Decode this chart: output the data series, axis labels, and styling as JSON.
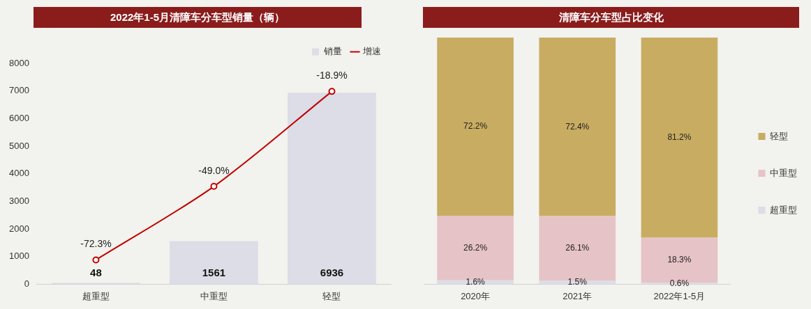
{
  "chart_data": [
    {
      "type": "bar",
      "title": "2022年1-5月清障车分车型销量（辆）",
      "categories": [
        "超重型",
        "中重型",
        "轻型"
      ],
      "series": [
        {
          "name": "销量",
          "color": "#dcdde6",
          "values": [
            48,
            1561,
            6936
          ],
          "value_labels": [
            "48",
            "1561",
            "6936"
          ]
        },
        {
          "name": "增速",
          "type": "line",
          "axis": "y2",
          "color": "#c00000",
          "values": [
            -72.3,
            -49.0,
            -18.9
          ],
          "value_labels": [
            "-72.3%",
            "-49.0%",
            "-18.9%"
          ]
        }
      ],
      "ylim": [
        0,
        8000
      ],
      "yticks": [
        0,
        1000,
        2000,
        3000,
        4000,
        5000,
        6000,
        7000,
        8000
      ],
      "tick_labels": "y",
      "grid": false,
      "legend": "top right",
      "marker": "circle"
    },
    {
      "type": "bar",
      "title": "清障车分车型占比变化",
      "categories": [
        "2020年",
        "2021年",
        "2022年1-5月"
      ],
      "stacked": true,
      "series": [
        {
          "name": "超重型",
          "color": "#dcdde6",
          "values": [
            1.6,
            1.5,
            0.6
          ],
          "value_labels": [
            "1.6%",
            "1.5%",
            "0.6%"
          ]
        },
        {
          "name": "中重型",
          "color": "#e6c3c6",
          "values": [
            26.2,
            26.1,
            18.3
          ],
          "value_labels": [
            "26.2%",
            "26.1%",
            "18.3%"
          ]
        },
        {
          "name": "轻型",
          "color": "#c8ac62",
          "values": [
            72.2,
            72.4,
            81.2
          ],
          "value_labels": [
            "72.2%",
            "72.4%",
            "81.2%"
          ]
        }
      ],
      "ylim": [
        0,
        100
      ],
      "tick_labels": "x",
      "grid": false,
      "legend": "right"
    }
  ]
}
